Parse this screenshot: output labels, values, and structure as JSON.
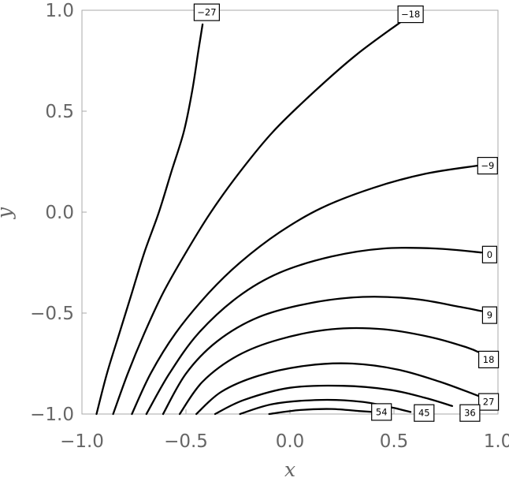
{
  "chart_data": {
    "type": "contour",
    "xlabel": "x",
    "ylabel": "y",
    "xlim": [
      -1.0,
      1.0
    ],
    "ylim": [
      -1.0,
      1.0
    ],
    "x_ticks": [
      {
        "value": -1.0,
        "label": "−1.0"
      },
      {
        "value": -0.5,
        "label": "−0.5"
      },
      {
        "value": 0.0,
        "label": "0.0"
      },
      {
        "value": 0.5,
        "label": "0.5"
      },
      {
        "value": 1.0,
        "label": "1.0"
      }
    ],
    "y_ticks": [
      {
        "value": -1.0,
        "label": "−1.0"
      },
      {
        "value": -0.5,
        "label": "−0.5"
      },
      {
        "value": 0.0,
        "label": "0.0"
      },
      {
        "value": 0.5,
        "label": "0.5"
      },
      {
        "value": 1.0,
        "label": "1.0"
      }
    ],
    "grid": false,
    "contour_lines": [
      {
        "level": -27,
        "label": "−27",
        "points": [
          [
            -0.93,
            -1.0
          ],
          [
            -0.88,
            -0.8
          ],
          [
            -0.82,
            -0.6
          ],
          [
            -0.76,
            -0.4
          ],
          [
            -0.7,
            -0.2
          ],
          [
            -0.63,
            0.0
          ],
          [
            -0.57,
            0.2
          ],
          [
            -0.51,
            0.4
          ],
          [
            -0.47,
            0.6
          ],
          [
            -0.44,
            0.8
          ],
          [
            -0.42,
            0.93
          ]
        ],
        "label_at": [
          -0.4,
          0.99
        ]
      },
      {
        "level": -18,
        "label": "−18",
        "points": [
          [
            -0.85,
            -1.0
          ],
          [
            -0.78,
            -0.8
          ],
          [
            -0.7,
            -0.6
          ],
          [
            -0.61,
            -0.4
          ],
          [
            -0.5,
            -0.2
          ],
          [
            -0.38,
            0.0
          ],
          [
            -0.24,
            0.2
          ],
          [
            -0.08,
            0.4
          ],
          [
            0.12,
            0.6
          ],
          [
            0.32,
            0.78
          ],
          [
            0.53,
            0.94
          ]
        ],
        "label_at": [
          0.58,
          0.98
        ]
      },
      {
        "level": -9,
        "label": "−9",
        "points": [
          [
            -0.76,
            -1.0
          ],
          [
            -0.67,
            -0.8
          ],
          [
            -0.55,
            -0.6
          ],
          [
            -0.39,
            -0.4
          ],
          [
            -0.24,
            -0.25
          ],
          [
            -0.05,
            -0.1
          ],
          [
            0.15,
            0.02
          ],
          [
            0.4,
            0.12
          ],
          [
            0.65,
            0.19
          ],
          [
            0.9,
            0.23
          ]
        ],
        "label_at": [
          0.95,
          0.23
        ]
      },
      {
        "level": 0,
        "label": "0",
        "points": [
          [
            -0.69,
            -1.0
          ],
          [
            -0.58,
            -0.8
          ],
          [
            -0.44,
            -0.6
          ],
          [
            -0.25,
            -0.42
          ],
          [
            -0.05,
            -0.3
          ],
          [
            0.2,
            -0.22
          ],
          [
            0.45,
            -0.18
          ],
          [
            0.7,
            -0.18
          ],
          [
            0.92,
            -0.2
          ]
        ],
        "label_at": [
          0.96,
          -0.21
        ]
      },
      {
        "level": 9,
        "label": "9",
        "points": [
          [
            -0.61,
            -1.0
          ],
          [
            -0.5,
            -0.8
          ],
          [
            -0.35,
            -0.64
          ],
          [
            -0.15,
            -0.52
          ],
          [
            0.1,
            -0.45
          ],
          [
            0.35,
            -0.42
          ],
          [
            0.6,
            -0.43
          ],
          [
            0.82,
            -0.47
          ],
          [
            0.92,
            -0.49
          ]
        ],
        "label_at": [
          0.96,
          -0.51
        ]
      },
      {
        "level": 18,
        "label": "18",
        "points": [
          [
            -0.53,
            -1.0
          ],
          [
            -0.42,
            -0.84
          ],
          [
            -0.25,
            -0.71
          ],
          [
            -0.05,
            -0.63
          ],
          [
            0.2,
            -0.58
          ],
          [
            0.45,
            -0.58
          ],
          [
            0.68,
            -0.62
          ],
          [
            0.85,
            -0.67
          ],
          [
            0.92,
            -0.7
          ]
        ],
        "label_at": [
          0.955,
          -0.73
        ]
      },
      {
        "level": 27,
        "label": "27",
        "points": [
          [
            -0.45,
            -1.0
          ],
          [
            -0.33,
            -0.89
          ],
          [
            -0.15,
            -0.81
          ],
          [
            0.08,
            -0.76
          ],
          [
            0.3,
            -0.75
          ],
          [
            0.52,
            -0.78
          ],
          [
            0.72,
            -0.84
          ],
          [
            0.88,
            -0.9
          ],
          [
            0.93,
            -0.92
          ]
        ],
        "label_at": [
          0.955,
          -0.94
        ]
      },
      {
        "level": 36,
        "label": "36",
        "points": [
          [
            -0.36,
            -1.0
          ],
          [
            -0.22,
            -0.93
          ],
          [
            0.0,
            -0.87
          ],
          [
            0.25,
            -0.86
          ],
          [
            0.48,
            -0.88
          ],
          [
            0.65,
            -0.92
          ],
          [
            0.78,
            -0.96
          ]
        ],
        "label_at": [
          0.865,
          -0.995
        ]
      },
      {
        "level": 45,
        "label": "45",
        "points": [
          [
            -0.24,
            -1.0
          ],
          [
            -0.08,
            -0.95
          ],
          [
            0.15,
            -0.93
          ],
          [
            0.35,
            -0.94
          ],
          [
            0.5,
            -0.97
          ],
          [
            0.58,
            -0.99
          ]
        ],
        "label_at": [
          0.645,
          -0.995
        ]
      },
      {
        "level": 54,
        "label": "54",
        "points": [
          [
            -0.1,
            -1.0
          ],
          [
            0.05,
            -0.98
          ],
          [
            0.2,
            -0.975
          ],
          [
            0.33,
            -0.985
          ],
          [
            0.4,
            -0.99
          ]
        ],
        "label_at": [
          0.44,
          -0.99
        ]
      }
    ]
  }
}
